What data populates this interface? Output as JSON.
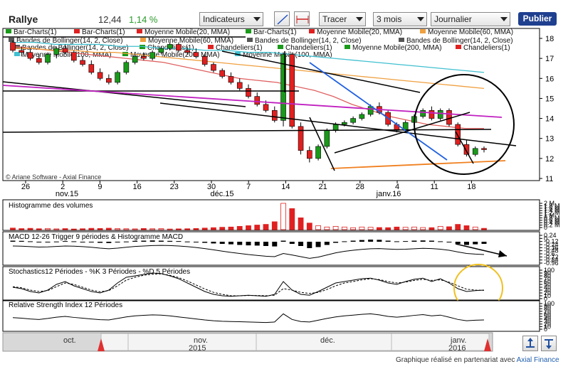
{
  "header": {
    "title": "Rallye",
    "price": "12,44",
    "change": "1,14 %",
    "indicators_label": "Indicateurs",
    "draw_label": "Tracer",
    "period_label": "3 mois",
    "frequency_label": "Journalier",
    "publish_label": "Publier"
  },
  "chart_data": [
    {
      "type": "candlestick",
      "ylim": [
        11,
        18
      ],
      "yticks": [
        "18",
        "17",
        "16",
        "15",
        "14",
        "13",
        "12",
        "11"
      ],
      "xticks": [
        "26",
        "2",
        "9",
        "16",
        "23",
        "30",
        "7",
        "14",
        "21",
        "28",
        "4",
        "11",
        "18"
      ],
      "month_labels": [
        "nov.15",
        "déc.15",
        "janv.16"
      ],
      "copyright": "© Ariane Software - Axial Finance",
      "legend": [
        {
          "label": "Bar-Charts(1)",
          "color": "#1a9a1a"
        },
        {
          "label": "Bar-Charts(1)",
          "color": "#e02020"
        },
        {
          "label": "Moyenne Mobile(20, MMA)",
          "color": "#e02020"
        },
        {
          "label": "Bar-Charts(1)",
          "color": "#1a9a1a"
        },
        {
          "label": "Moyenne Mobile(20, MMA)",
          "color": "#e02020"
        },
        {
          "label": "Moyenne Mobile(60, MMA)",
          "color": "#f0a040"
        },
        {
          "label": "Bandes de Bollinger(14, 2, Close)",
          "color": "#555555"
        },
        {
          "label": "Moyenne Mobile(60, MMA)",
          "color": "#f0a040"
        },
        {
          "label": "Bandes de Bollinger(14, 2, Close)",
          "color": "#555555"
        },
        {
          "label": "Bandes de Bollinger(14, 2, Close)",
          "color": "#555555"
        },
        {
          "label": "Bandes de Bollinger(14, 2, Close)",
          "color": "#555555"
        },
        {
          "label": "Chandeliers(1)",
          "color": "#1a9a1a"
        },
        {
          "label": "Chandeliers(1)",
          "color": "#e02020"
        },
        {
          "label": "Chandeliers(1)",
          "color": "#1a9a1a"
        },
        {
          "label": "Moyenne Mobile(200, MMA)",
          "color": "#1a9a1a"
        },
        {
          "label": "Chandeliers(1)",
          "color": "#e02020"
        },
        {
          "label": "Moyenne Mobile(100, MMA)",
          "color": "#40c0d0"
        },
        {
          "label": "Moyenne Mobile(200, MMA)",
          "color": "#1a9a1a"
        },
        {
          "label": "Moyenne Mobile(100, MMA)",
          "color": "#40c0d0"
        }
      ],
      "candles": [
        [
          17.8,
          17.9,
          17.3,
          17.4
        ],
        [
          17.4,
          17.6,
          17.1,
          17.3
        ],
        [
          17.3,
          17.5,
          16.9,
          17.0
        ],
        [
          17.0,
          17.2,
          16.7,
          16.8
        ],
        [
          16.8,
          17.3,
          16.7,
          17.2
        ],
        [
          17.2,
          17.6,
          17.0,
          17.5
        ],
        [
          17.5,
          17.7,
          17.2,
          17.3
        ],
        [
          17.3,
          17.4,
          16.8,
          16.9
        ],
        [
          16.9,
          17.1,
          16.6,
          16.7
        ],
        [
          16.7,
          16.9,
          16.2,
          16.3
        ],
        [
          16.3,
          16.5,
          15.9,
          16.0
        ],
        [
          16.0,
          16.2,
          15.7,
          15.8
        ],
        [
          15.8,
          16.4,
          15.7,
          16.3
        ],
        [
          16.3,
          16.9,
          16.2,
          16.8
        ],
        [
          16.8,
          17.2,
          16.7,
          17.1
        ],
        [
          17.1,
          17.3,
          16.9,
          17.0
        ],
        [
          17.0,
          17.4,
          16.9,
          17.3
        ],
        [
          17.3,
          17.6,
          17.2,
          17.5
        ],
        [
          17.5,
          17.8,
          17.4,
          17.7
        ],
        [
          17.7,
          17.8,
          17.3,
          17.4
        ],
        [
          17.4,
          17.6,
          17.2,
          17.3
        ],
        [
          17.3,
          17.5,
          17.0,
          17.1
        ],
        [
          17.1,
          17.2,
          16.6,
          16.7
        ],
        [
          16.7,
          16.8,
          16.3,
          16.4
        ],
        [
          16.4,
          16.5,
          16.0,
          16.1
        ],
        [
          16.1,
          16.3,
          15.7,
          15.8
        ],
        [
          15.8,
          16.0,
          15.4,
          15.5
        ],
        [
          15.5,
          15.7,
          15.0,
          15.1
        ],
        [
          15.1,
          15.3,
          14.6,
          14.7
        ],
        [
          14.7,
          14.9,
          14.3,
          14.4
        ],
        [
          14.4,
          14.6,
          13.8,
          13.9
        ],
        [
          13.9,
          17.3,
          13.6,
          17.2
        ],
        [
          17.2,
          17.3,
          13.5,
          13.6
        ],
        [
          13.6,
          13.8,
          12.2,
          12.4
        ],
        [
          12.4,
          12.6,
          11.8,
          12.0
        ],
        [
          12.0,
          12.7,
          11.9,
          12.6
        ],
        [
          12.6,
          13.5,
          12.5,
          13.4
        ],
        [
          13.4,
          13.8,
          13.3,
          13.7
        ],
        [
          13.7,
          13.9,
          13.6,
          13.8
        ],
        [
          13.8,
          14.1,
          13.7,
          14.0
        ],
        [
          14.0,
          14.3,
          13.9,
          14.2
        ],
        [
          14.2,
          14.7,
          14.1,
          14.6
        ],
        [
          14.6,
          14.8,
          14.2,
          14.3
        ],
        [
          14.3,
          14.4,
          13.6,
          13.7
        ],
        [
          13.7,
          13.8,
          13.3,
          13.4
        ],
        [
          13.4,
          13.9,
          13.3,
          13.8
        ],
        [
          13.8,
          14.2,
          13.7,
          14.1
        ],
        [
          14.1,
          14.5,
          14.0,
          14.4
        ],
        [
          14.4,
          14.6,
          13.9,
          14.0
        ],
        [
          14.0,
          14.5,
          13.9,
          14.4
        ],
        [
          14.4,
          14.5,
          13.6,
          13.7
        ],
        [
          13.7,
          13.8,
          12.6,
          12.7
        ],
        [
          12.7,
          12.9,
          12.1,
          12.2
        ],
        [
          12.2,
          12.6,
          12.1,
          12.5
        ],
        [
          12.5,
          12.6,
          12.3,
          12.44
        ]
      ],
      "moving_averages": [
        {
          "name": "MM20",
          "color": "#e06060",
          "values": [
            17.6,
            17.5,
            17.4,
            17.3,
            17.2,
            17.1,
            17.0,
            16.9,
            16.8,
            16.6,
            16.4,
            16.2,
            16.0,
            15.9,
            15.8,
            15.6,
            15.4,
            15.1,
            14.7,
            14.4,
            14.1,
            13.9,
            13.7,
            13.6,
            13.5,
            13.5
          ]
        },
        {
          "name": "MM60",
          "color": "#f0a040",
          "values": [
            17.5,
            17.5,
            17.4,
            17.4,
            17.3,
            17.3,
            17.2,
            17.1,
            17.0,
            16.9,
            16.8,
            16.7,
            16.6,
            16.5,
            16.4,
            16.3,
            16.2,
            16.1,
            16.0,
            15.9,
            15.8,
            15.7,
            15.6,
            15.5
          ]
        },
        {
          "name": "MM100",
          "color": "#40c0d0",
          "values": [
            17.8,
            17.8,
            17.7,
            17.7,
            17.7,
            17.6,
            17.6,
            17.5,
            17.5,
            17.4,
            17.4,
            17.3,
            17.3,
            17.2,
            17.1,
            17.0,
            16.9,
            16.8,
            16.7,
            16.6,
            16.5,
            16.4,
            16.3
          ]
        }
      ]
    },
    {
      "type": "bar",
      "title": "Histogramme des volumes",
      "yticks": [
        "2 M",
        "1.8 M",
        "1.6 M",
        "1.4 M",
        "1.2 M",
        "1 M",
        "0.8 M",
        "0.6 M",
        "0.4 M",
        "0.2 M",
        "0"
      ],
      "values": [
        0.12,
        0.08,
        0.1,
        0.07,
        0.09,
        0.06,
        0.08,
        0.05,
        0.07,
        0.1,
        0.09,
        0.11,
        0.08,
        0.07,
        0.06,
        0.09,
        0.07,
        0.08,
        0.05,
        0.06,
        0.07,
        0.09,
        0.12,
        0.15,
        0.18,
        0.2,
        0.25,
        0.3,
        0.35,
        0.4,
        0.6,
        2.0,
        1.6,
        0.9,
        0.5,
        0.3,
        0.2,
        0.25,
        0.2,
        0.15,
        0.2,
        0.18,
        0.16,
        0.15,
        0.2,
        0.18,
        0.2,
        0.16,
        0.15,
        0.25,
        0.22,
        0.4,
        0.3,
        0.2,
        0.1
      ],
      "ylim": [
        0,
        2
      ]
    },
    {
      "type": "bar",
      "title": "MACD 12-26   Trigger 9 périodes & Histogramme MACD",
      "yticks": [
        "0.24",
        "0",
        "-0.12",
        "-0.24",
        "-0.36",
        "-0.48",
        "-0.6",
        "-0.72",
        "-0.84",
        "-0.96"
      ],
      "histogram": [
        0.05,
        0.04,
        0.02,
        -0.01,
        -0.02,
        0.01,
        0.03,
        0.02,
        0.0,
        -0.03,
        -0.05,
        -0.06,
        -0.03,
        0.01,
        0.04,
        0.05,
        0.06,
        0.05,
        0.04,
        0.03,
        0.01,
        -0.02,
        -0.05,
        -0.08,
        -0.1,
        -0.12,
        -0.15,
        -0.17,
        -0.18,
        -0.2,
        -0.22,
        0.05,
        -0.1,
        -0.2,
        -0.3,
        -0.25,
        -0.15,
        -0.05,
        0.02,
        0.05,
        0.08,
        0.1,
        0.09,
        0.05,
        0.02,
        0.03,
        0.05,
        0.06,
        0.05,
        0.02,
        -0.03,
        -0.1,
        -0.15,
        -0.12,
        -0.1
      ],
      "macd": [
        -0.2,
        -0.21,
        -0.23,
        -0.25,
        -0.24,
        -0.22,
        -0.2,
        -0.21,
        -0.23,
        -0.26,
        -0.3,
        -0.33,
        -0.3,
        -0.26,
        -0.22,
        -0.2,
        -0.18,
        -0.17,
        -0.18,
        -0.2,
        -0.23,
        -0.27,
        -0.32,
        -0.38,
        -0.44,
        -0.5,
        -0.55,
        -0.6,
        -0.64,
        -0.68,
        -0.7,
        -0.55,
        -0.62,
        -0.7,
        -0.78,
        -0.72,
        -0.62,
        -0.52,
        -0.45,
        -0.4,
        -0.36,
        -0.33,
        -0.32,
        -0.34,
        -0.36,
        -0.35,
        -0.33,
        -0.31,
        -0.32,
        -0.35,
        -0.4,
        -0.48,
        -0.55,
        -0.58,
        -0.6
      ],
      "ylim": [
        -1.0,
        0.3
      ]
    },
    {
      "type": "line",
      "title": "Stochastics12 Périodes   -   %K 3 Périodes   -   %D 5 Périodes",
      "yticks": [
        "100",
        "90",
        "80",
        "70",
        "60",
        "50",
        "40",
        "30",
        "20",
        "10",
        "0"
      ],
      "k": [
        40,
        35,
        25,
        20,
        30,
        50,
        60,
        45,
        35,
        25,
        20,
        30,
        55,
        75,
        80,
        85,
        90,
        88,
        80,
        70,
        55,
        40,
        25,
        15,
        10,
        8,
        10,
        12,
        10,
        8,
        15,
        60,
        30,
        15,
        12,
        25,
        40,
        55,
        60,
        65,
        70,
        72,
        65,
        55,
        50,
        60,
        68,
        72,
        60,
        70,
        55,
        35,
        25,
        28,
        30
      ],
      "d": [
        42,
        38,
        30,
        25,
        28,
        42,
        55,
        50,
        40,
        30,
        24,
        28,
        45,
        65,
        75,
        82,
        86,
        87,
        82,
        74,
        62,
        48,
        34,
        22,
        15,
        10,
        10,
        11,
        11,
        10,
        12,
        35,
        30,
        22,
        18,
        22,
        32,
        45,
        55,
        60,
        66,
        70,
        67,
        60,
        55,
        58,
        64,
        68,
        64,
        66,
        58,
        45,
        33,
        30,
        29
      ],
      "ylim": [
        0,
        100
      ]
    },
    {
      "type": "line",
      "title": "Relative Strength Index 12 Périodes",
      "yticks": [
        "100",
        "90",
        "80",
        "70",
        "60",
        "50",
        "40",
        "30",
        "20",
        "10",
        "0"
      ],
      "values": [
        45,
        43,
        40,
        38,
        42,
        47,
        50,
        46,
        43,
        40,
        37,
        36,
        42,
        48,
        52,
        54,
        56,
        55,
        52,
        48,
        44,
        40,
        36,
        33,
        31,
        30,
        29,
        28,
        27,
        26,
        28,
        60,
        38,
        30,
        28,
        35,
        42,
        48,
        52,
        55,
        58,
        60,
        56,
        50,
        47,
        50,
        54,
        57,
        52,
        55,
        47,
        38,
        33,
        35,
        36
      ],
      "ylim": [
        0,
        100
      ]
    }
  ],
  "timeline": {
    "labels": [
      "oct.",
      "nov.\n2015",
      "déc.",
      "janv.\n2016"
    ],
    "nov": "nov.",
    "y2015": "2015",
    "y2016": "2016",
    "janv": "janv."
  },
  "footer": {
    "text": "Graphique réalisé en partenariat avec ",
    "link": "Axial Finance"
  }
}
